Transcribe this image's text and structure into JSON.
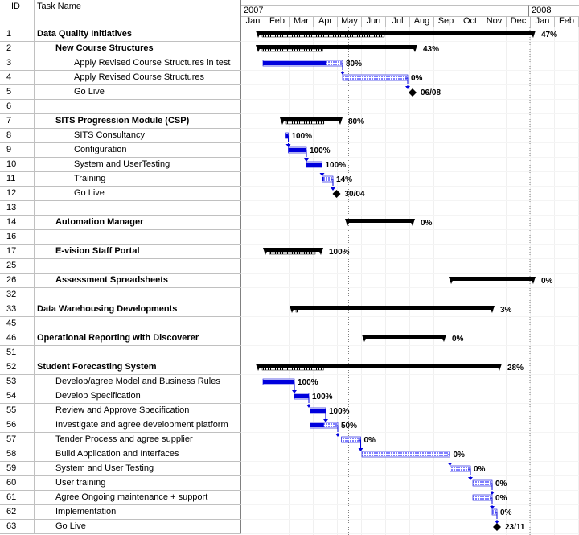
{
  "headers": {
    "id": "ID",
    "task_name": "Task Name"
  },
  "timescale": {
    "years": [
      {
        "label": "2007"
      },
      {
        "label": "2008"
      }
    ],
    "months": [
      "Jan",
      "Feb",
      "Mar",
      "Apr",
      "May",
      "Jun",
      "Jul",
      "Aug",
      "Sep",
      "Oct",
      "Nov",
      "Dec",
      "Jan",
      "Feb"
    ]
  },
  "rows": [
    {
      "id": "1",
      "name": "Data Quality Initiatives",
      "level": 0,
      "bold": true,
      "bar": {
        "type": "summary",
        "start": 0.7,
        "end": 12.1,
        "pct": "47%",
        "progress": 0.47
      }
    },
    {
      "id": "2",
      "name": "New Course Structures",
      "level": 1,
      "bold": true,
      "bar": {
        "type": "summary",
        "start": 0.7,
        "end": 7.2,
        "pct": "43%",
        "progress": 0.43
      }
    },
    {
      "id": "3",
      "name": "Apply Revised Course Structures in test",
      "level": 2,
      "bold": false,
      "bar": {
        "type": "task",
        "start": 0.9,
        "end": 4.2,
        "pct": "80%",
        "progress": 0.8
      }
    },
    {
      "id": "4",
      "name": "Apply Revised Course Structures",
      "level": 2,
      "bold": false,
      "bar": {
        "type": "task",
        "start": 4.2,
        "end": 6.9,
        "pct": "0%",
        "progress": 0
      }
    },
    {
      "id": "5",
      "name": "Go Live",
      "level": 2,
      "bold": false,
      "bar": {
        "type": "milestone",
        "at": 7.1,
        "label": "06/08"
      }
    },
    {
      "id": "6",
      "name": "",
      "level": 0,
      "bold": false,
      "bar": null
    },
    {
      "id": "7",
      "name": "SITS Progression Module (CSP)",
      "level": 1,
      "bold": true,
      "bar": {
        "type": "summary",
        "start": 1.7,
        "end": 4.1,
        "pct": "80%",
        "progress": 0.8
      }
    },
    {
      "id": "8",
      "name": "SITS Consultancy",
      "level": 3,
      "bold": false,
      "bar": {
        "type": "task",
        "start": 1.85,
        "end": 1.95,
        "pct": "100%",
        "progress": 1
      }
    },
    {
      "id": "9",
      "name": "Configuration",
      "level": 3,
      "bold": false,
      "bar": {
        "type": "task",
        "start": 1.95,
        "end": 2.7,
        "pct": "100%",
        "progress": 1
      }
    },
    {
      "id": "10",
      "name": "System and UserTesting",
      "level": 3,
      "bold": false,
      "bar": {
        "type": "task",
        "start": 2.7,
        "end": 3.35,
        "pct": "100%",
        "progress": 1
      }
    },
    {
      "id": "11",
      "name": "Training",
      "level": 3,
      "bold": false,
      "bar": {
        "type": "task",
        "start": 3.35,
        "end": 3.8,
        "pct": "14%",
        "progress": 0.14
      }
    },
    {
      "id": "12",
      "name": "Go Live",
      "level": 3,
      "bold": false,
      "bar": {
        "type": "milestone",
        "at": 3.95,
        "label": "30/04"
      }
    },
    {
      "id": "13",
      "name": "",
      "level": 0,
      "bold": false,
      "bar": null
    },
    {
      "id": "14",
      "name": "Automation Manager",
      "level": 1,
      "bold": true,
      "bar": {
        "type": "summary",
        "start": 4.4,
        "end": 7.1,
        "pct": "0%",
        "progress": 0
      }
    },
    {
      "id": "16",
      "name": "",
      "level": 0,
      "bold": false,
      "bar": null
    },
    {
      "id": "17",
      "name": "E-vision Staff Portal",
      "level": 1,
      "bold": true,
      "bar": {
        "type": "summary",
        "start": 1.0,
        "end": 3.3,
        "pct": "100%",
        "progress": 1
      }
    },
    {
      "id": "25",
      "name": "",
      "level": 0,
      "bold": false,
      "bar": null
    },
    {
      "id": "26",
      "name": "Assessment Spreadsheets",
      "level": 1,
      "bold": true,
      "bar": {
        "type": "summary",
        "start": 8.7,
        "end": 12.1,
        "pct": "0%",
        "progress": 0
      }
    },
    {
      "id": "32",
      "name": "",
      "level": 0,
      "bold": false,
      "bar": null
    },
    {
      "id": "33",
      "name": "Data Warehousing Developments",
      "level": 0,
      "bold": true,
      "bar": {
        "type": "summary",
        "start": 2.1,
        "end": 10.4,
        "pct": "3%",
        "progress": 0.03
      }
    },
    {
      "id": "45",
      "name": "",
      "level": 0,
      "bold": false,
      "bar": null
    },
    {
      "id": "46",
      "name": "Operational Reporting with Discoverer",
      "level": 0,
      "bold": true,
      "bar": {
        "type": "summary",
        "start": 5.1,
        "end": 8.4,
        "pct": "0%",
        "progress": 0
      }
    },
    {
      "id": "51",
      "name": "",
      "level": 0,
      "bold": false,
      "bar": null
    },
    {
      "id": "52",
      "name": "Student Forecasting System",
      "level": 0,
      "bold": true,
      "bar": {
        "type": "summary",
        "start": 0.7,
        "end": 10.7,
        "pct": "28%",
        "progress": 0.28
      }
    },
    {
      "id": "53",
      "name": "Develop/agree Model and Business Rules",
      "level": 1,
      "bold": false,
      "bar": {
        "type": "task",
        "start": 0.9,
        "end": 2.2,
        "pct": "100%",
        "progress": 1
      }
    },
    {
      "id": "54",
      "name": "Develop Specification",
      "level": 1,
      "bold": false,
      "bar": {
        "type": "task",
        "start": 2.2,
        "end": 2.8,
        "pct": "100%",
        "progress": 1
      }
    },
    {
      "id": "55",
      "name": "Review and Approve Specification",
      "level": 1,
      "bold": false,
      "bar": {
        "type": "task",
        "start": 2.85,
        "end": 3.5,
        "pct": "100%",
        "progress": 1
      }
    },
    {
      "id": "56",
      "name": "Investigate and agree development platform",
      "level": 1,
      "bold": false,
      "bar": {
        "type": "task",
        "start": 2.85,
        "end": 4.0,
        "pct": "50%",
        "progress": 0.5
      }
    },
    {
      "id": "57",
      "name": "Tender Process and agree supplier",
      "level": 1,
      "bold": false,
      "bar": {
        "type": "task",
        "start": 4.15,
        "end": 4.95,
        "pct": "0%",
        "progress": 0
      }
    },
    {
      "id": "58",
      "name": "Build Application and Interfaces",
      "level": 1,
      "bold": false,
      "bar": {
        "type": "task",
        "start": 5.0,
        "end": 8.65,
        "pct": "0%",
        "progress": 0
      }
    },
    {
      "id": "59",
      "name": "System and User Testing",
      "level": 1,
      "bold": false,
      "bar": {
        "type": "task",
        "start": 8.65,
        "end": 9.5,
        "pct": "0%",
        "progress": 0
      }
    },
    {
      "id": "60",
      "name": "User training",
      "level": 1,
      "bold": false,
      "bar": {
        "type": "task",
        "start": 9.6,
        "end": 10.4,
        "pct": "0%",
        "progress": 0
      }
    },
    {
      "id": "61",
      "name": "Agree Ongoing maintenance + support",
      "level": 1,
      "bold": false,
      "bar": {
        "type": "task",
        "start": 9.6,
        "end": 10.4,
        "pct": "0%",
        "progress": 0
      }
    },
    {
      "id": "62",
      "name": "Implementation",
      "level": 1,
      "bold": false,
      "bar": {
        "type": "task",
        "start": 10.4,
        "end": 10.6,
        "pct": "0%",
        "progress": 0
      }
    },
    {
      "id": "63",
      "name": "Go Live",
      "level": 1,
      "bold": false,
      "bar": {
        "type": "milestone",
        "at": 10.6,
        "label": "23/11"
      }
    }
  ],
  "colors": {
    "task_bar": "#0000dd",
    "task_remaining": "#7f7fff",
    "summary": "#000000",
    "grid": "#c0c0c0",
    "dotted": "#808080"
  }
}
